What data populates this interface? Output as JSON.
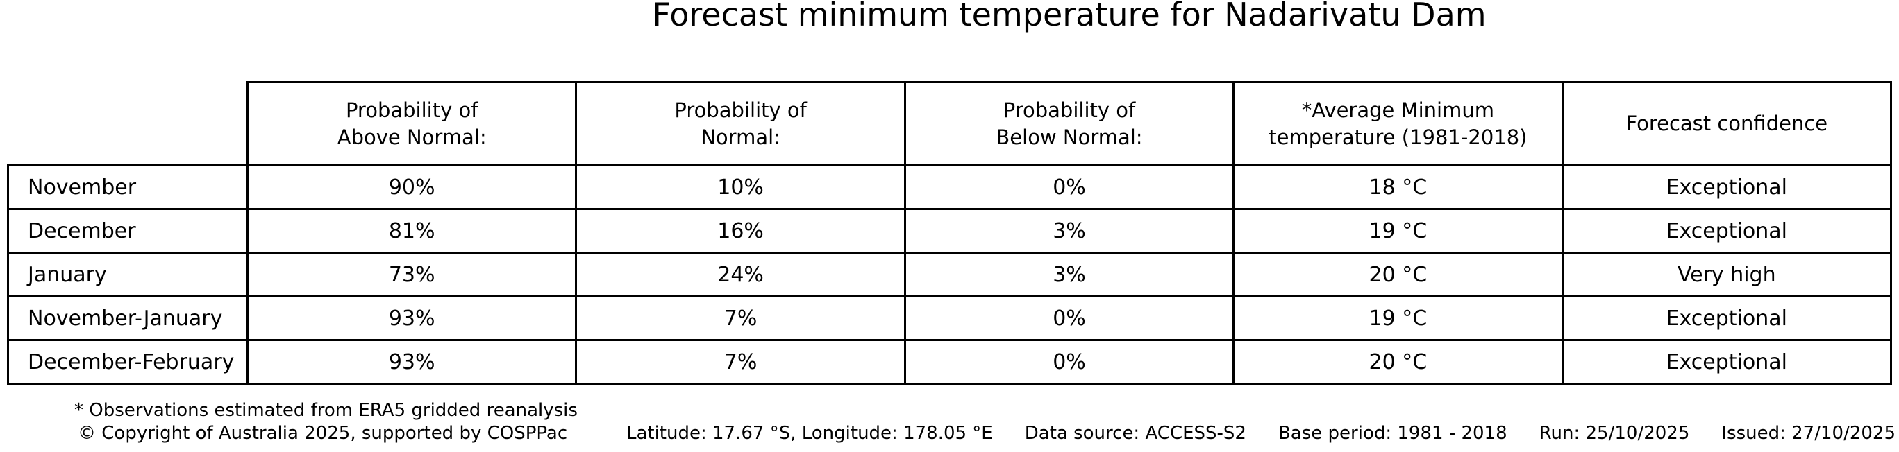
{
  "title": "Forecast minimum temperature for Nadarivatu Dam",
  "chart_data": {
    "type": "table",
    "title": "Forecast minimum temperature for Nadarivatu Dam",
    "columns": [
      "",
      "Probability of Above Normal:",
      "Probability of Normal:",
      "Probability of Below Normal:",
      "*Average Minimum temperature (1981-2018)",
      "Forecast confidence"
    ],
    "rows": [
      [
        "November",
        "90%",
        "10%",
        "0%",
        "18 °C",
        "Exceptional"
      ],
      [
        "December",
        "81%",
        "16%",
        "3%",
        "19 °C",
        "Exceptional"
      ],
      [
        "January",
        "73%",
        "24%",
        "3%",
        "20 °C",
        "Very high"
      ],
      [
        "November-January",
        "93%",
        "7%",
        "0%",
        "19 °C",
        "Exceptional"
      ],
      [
        "December-February",
        "93%",
        "7%",
        "0%",
        "20 °C",
        "Exceptional"
      ]
    ],
    "notes": [
      "* Observations estimated from ERA5 gridded reanalysis"
    ]
  },
  "header_lines": [
    "Probability of\nAbove Normal:",
    "Probability of\nNormal:",
    "Probability of\nBelow Normal:",
    "*Average Minimum\ntemperature (1981-2018)",
    "Forecast confidence"
  ],
  "footnote": "* Observations estimated from ERA5 gridded reanalysis",
  "footer": {
    "copyright": "© Copyright of Australia 2025, supported by COSPPac",
    "location": "Latitude: 17.67 °S, Longitude: 178.05 °E",
    "data_source": "Data source: ACCESS-S2",
    "base_period": "Base period: 1981 - 2018",
    "run": "Run: 25/10/2025",
    "issued": "Issued: 27/10/2025"
  },
  "colors": {
    "text": "#000000",
    "background": "#ffffff",
    "table_border": "#000000"
  }
}
